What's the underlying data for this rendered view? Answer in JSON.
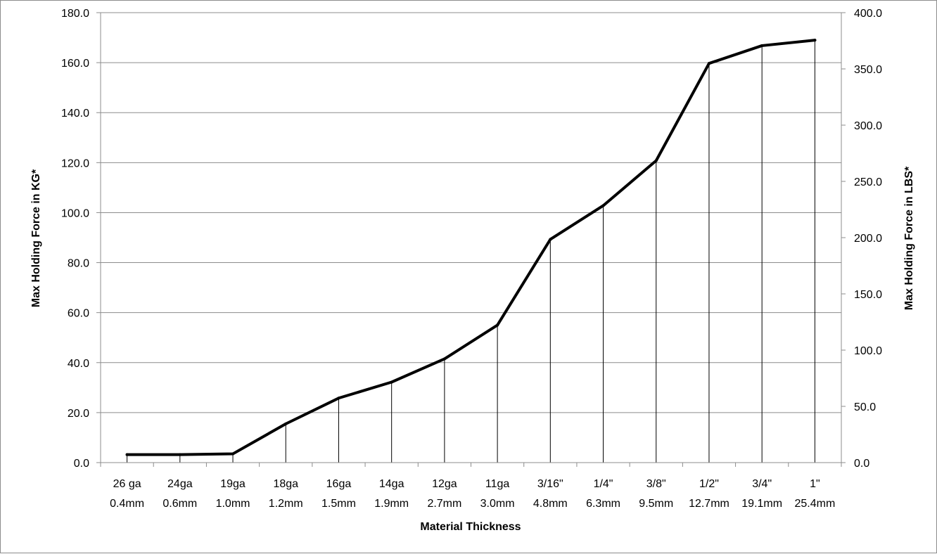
{
  "chart_data": {
    "type": "line",
    "xlabel": "Material Thickness",
    "ylabel": "Max Holding Force in  KG*",
    "y2label": "Max Holding Force in LBS*",
    "ylim": [
      0,
      180
    ],
    "y2lim": [
      0,
      400
    ],
    "yticks": [
      "0.0",
      "20.0",
      "40.0",
      "60.0",
      "80.0",
      "100.0",
      "120.0",
      "140.0",
      "160.0",
      "180.0"
    ],
    "y2ticks": [
      "0.0",
      "50.0",
      "100.0",
      "150.0",
      "200.0",
      "250.0",
      "300.0",
      "350.0",
      "400.0"
    ],
    "categories": [
      {
        "gauge": "26 ga",
        "mm": "0.4mm"
      },
      {
        "gauge": "24ga",
        "mm": "0.6mm"
      },
      {
        "gauge": "19ga",
        "mm": "1.0mm"
      },
      {
        "gauge": "18ga",
        "mm": "1.2mm"
      },
      {
        "gauge": "16ga",
        "mm": "1.5mm"
      },
      {
        "gauge": "14ga",
        "mm": "1.9mm"
      },
      {
        "gauge": "12ga",
        "mm": "2.7mm"
      },
      {
        "gauge": "11ga",
        "mm": "3.0mm"
      },
      {
        "gauge": "3/16\"",
        "mm": "4.8mm"
      },
      {
        "gauge": "1/4\"",
        "mm": "6.3mm"
      },
      {
        "gauge": "3/8\"",
        "mm": "9.5mm"
      },
      {
        "gauge": "1/2\"",
        "mm": "12.7mm"
      },
      {
        "gauge": "3/4\"",
        "mm": "19.1mm"
      },
      {
        "gauge": "1\"",
        "mm": "25.4mm"
      }
    ],
    "series": [
      {
        "values": [
          3.2,
          3.2,
          3.5,
          15.5,
          25.8,
          32.2,
          41.5,
          55.0,
          89.3,
          102.8,
          120.8,
          159.7,
          166.8,
          169.0
        ]
      }
    ],
    "grid": true,
    "drop_lines": true,
    "legend": "none",
    "line_color": "#000000",
    "grid_color": "#8c8c8c"
  }
}
